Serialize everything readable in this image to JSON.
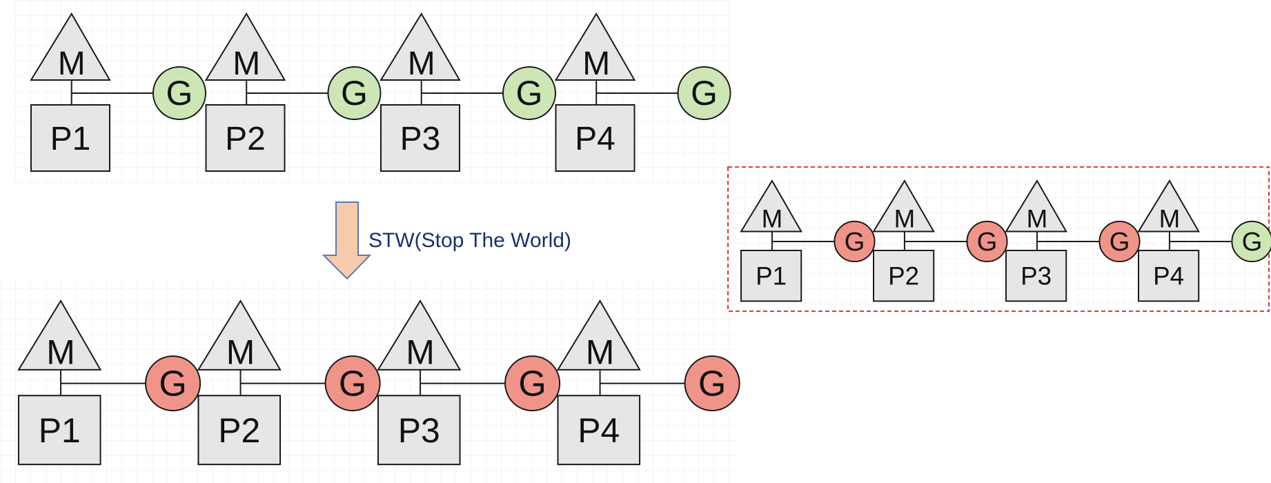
{
  "colors": {
    "shape_fill": "#e6e6e6",
    "stroke": "#1a1a1a",
    "g_green": "#cde6b5",
    "g_red": "#f0948a",
    "arrow_fill": "#f6cbac",
    "arrow_stroke": "#5b79b5",
    "stw_text": "#1a2f6f",
    "highlight_border": "#e53935",
    "grid": "#e8e8e8"
  },
  "top_row": {
    "units": [
      {
        "m": "M",
        "p": "P1",
        "g": "G",
        "g_state": "green"
      },
      {
        "m": "M",
        "p": "P2",
        "g": "G",
        "g_state": "green"
      },
      {
        "m": "M",
        "p": "P3",
        "g": "G",
        "g_state": "green"
      },
      {
        "m": "M",
        "p": "P4",
        "g": "G",
        "g_state": "green"
      }
    ]
  },
  "arrow": {
    "label": "STW(Stop The World)"
  },
  "bottom_row": {
    "units": [
      {
        "m": "M",
        "p": "P1",
        "g": "G",
        "g_state": "red"
      },
      {
        "m": "M",
        "p": "P2",
        "g": "G",
        "g_state": "red"
      },
      {
        "m": "M",
        "p": "P3",
        "g": "G",
        "g_state": "red"
      },
      {
        "m": "M",
        "p": "P4",
        "g": "G",
        "g_state": "red"
      }
    ]
  },
  "highlight_row": {
    "units": [
      {
        "m": "M",
        "p": "P1",
        "g": "G",
        "g_state": "red"
      },
      {
        "m": "M",
        "p": "P2",
        "g": "G",
        "g_state": "red"
      },
      {
        "m": "M",
        "p": "P3",
        "g": "G",
        "g_state": "red"
      },
      {
        "m": "M",
        "p": "P4",
        "g": "G",
        "g_state": "green"
      }
    ]
  }
}
